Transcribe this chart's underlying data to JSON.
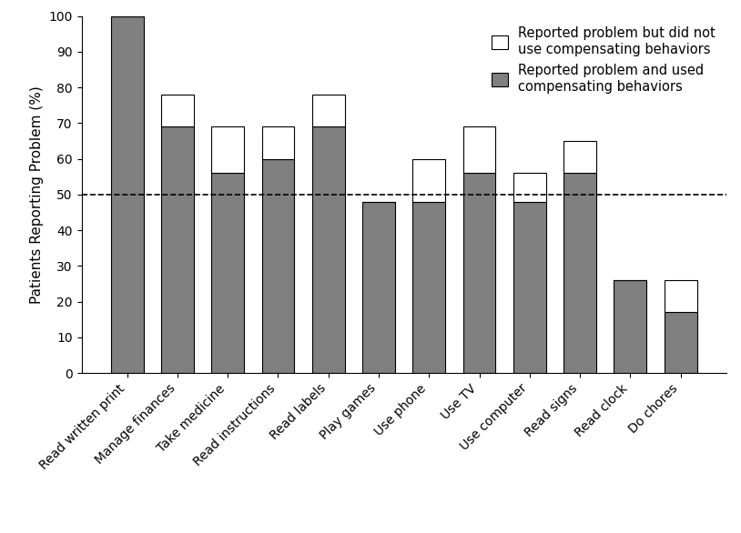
{
  "categories": [
    "Read written print",
    "Manage finances",
    "Take medicine",
    "Read instructions",
    "Read labels",
    "Play games",
    "Use phone",
    "Use TV",
    "Use computer",
    "Read signs",
    "Read clock",
    "Do chores"
  ],
  "gray_values": [
    100,
    69,
    56,
    60,
    69,
    48,
    48,
    56,
    48,
    56,
    26,
    17
  ],
  "white_values": [
    0,
    9,
    13,
    9,
    9,
    0,
    12,
    13,
    8,
    9,
    0,
    9
  ],
  "gray_color": "#808080",
  "white_color": "#ffffff",
  "bar_edge_color": "#000000",
  "ylabel": "Patients Reporting Problem (%)",
  "ylim": [
    0,
    100
  ],
  "yticks": [
    0,
    10,
    20,
    30,
    40,
    50,
    60,
    70,
    80,
    90,
    100
  ],
  "dashed_line_y": 50,
  "legend_label_white": "Reported problem but did not\nuse compensating behaviors",
  "legend_label_gray": "Reported problem and used\ncompensating behaviors",
  "background_color": "#ffffff",
  "bar_width": 0.65,
  "axis_fontsize": 11,
  "tick_fontsize": 10,
  "legend_fontsize": 10.5
}
